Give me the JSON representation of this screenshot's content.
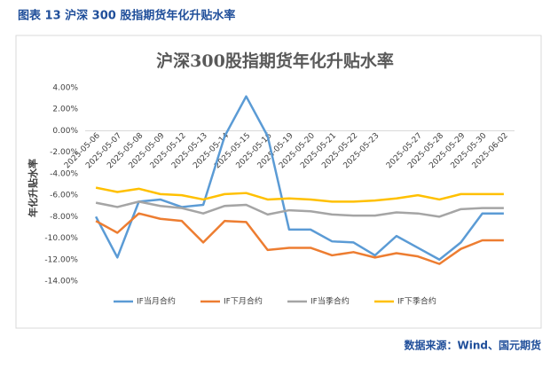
{
  "caption": "图表 13 沪深 300 股指期货年化升贴水率",
  "source": "数据来源：Wind、国元期货",
  "chart_data": {
    "type": "line",
    "title": "沪深300股指期货年化升贴水率",
    "y_label": "年化升贴水率",
    "categories": [
      "2025-05-06",
      "2025-05-07",
      "2025-05-08",
      "2025-05-09",
      "2025-05-12",
      "2025-05-13",
      "2025-05-14",
      "2025-05-15",
      "2025-05-16",
      "2025-05-19",
      "2025-05-20",
      "2025-05-21",
      "2025-05-22",
      "2025-05-23",
      null,
      "2025-05-27",
      "2025-05-28",
      "2025-05-29",
      "2025-05-30",
      "2025-06-02"
    ],
    "series": [
      {
        "name": "IF当月合约",
        "color": "#5b9bd5",
        "values": [
          -8.0,
          -11.8,
          -6.6,
          -6.4,
          -7.1,
          -6.9,
          -0.5,
          3.2,
          -0.5,
          -9.2,
          -9.2,
          -10.3,
          -10.4,
          -11.6,
          -9.8,
          -10.9,
          -12.0,
          -10.4,
          -7.7,
          -7.7
        ]
      },
      {
        "name": "IF下月合约",
        "color": "#ed7d31",
        "values": [
          -8.4,
          -9.5,
          -7.7,
          -8.2,
          -8.4,
          -10.4,
          -8.4,
          -8.5,
          -11.1,
          -10.9,
          -10.9,
          -11.6,
          -11.3,
          -11.8,
          -11.4,
          -11.7,
          -12.4,
          -11.0,
          -10.2,
          -10.2
        ]
      },
      {
        "name": "IF当季合约",
        "color": "#a5a5a5",
        "values": [
          -6.7,
          -7.1,
          -6.6,
          -7.0,
          -7.2,
          -7.7,
          -7.0,
          -6.9,
          -7.8,
          -7.4,
          -7.5,
          -7.8,
          -7.9,
          -7.9,
          -7.6,
          -7.7,
          -8.0,
          -7.3,
          -7.2,
          -7.2
        ]
      },
      {
        "name": "IF下季合约",
        "color": "#ffc000",
        "values": [
          -5.3,
          -5.7,
          -5.4,
          -5.9,
          -6.0,
          -6.4,
          -5.9,
          -5.8,
          -6.4,
          -6.3,
          -6.4,
          -6.6,
          -6.6,
          -6.5,
          -6.3,
          -6.0,
          -6.4,
          -5.9,
          -5.9,
          -5.9
        ]
      }
    ],
    "ylim": [
      -14,
      4
    ],
    "yticks": [
      {
        "value": 4,
        "label": "4.00%"
      },
      {
        "value": 2,
        "label": "2.00%"
      },
      {
        "value": 0,
        "label": "0.00%"
      },
      {
        "value": -2,
        "label": "-2.00%"
      },
      {
        "value": -4,
        "label": "-4.00%"
      },
      {
        "value": -6,
        "label": "-6.00%"
      },
      {
        "value": -8,
        "label": "-8.00%"
      },
      {
        "value": -10,
        "label": "-10.00%"
      },
      {
        "value": -12,
        "label": "-12.00%"
      },
      {
        "value": -14,
        "label": "-14.00%"
      }
    ],
    "grid": false,
    "legend": "bottom"
  }
}
